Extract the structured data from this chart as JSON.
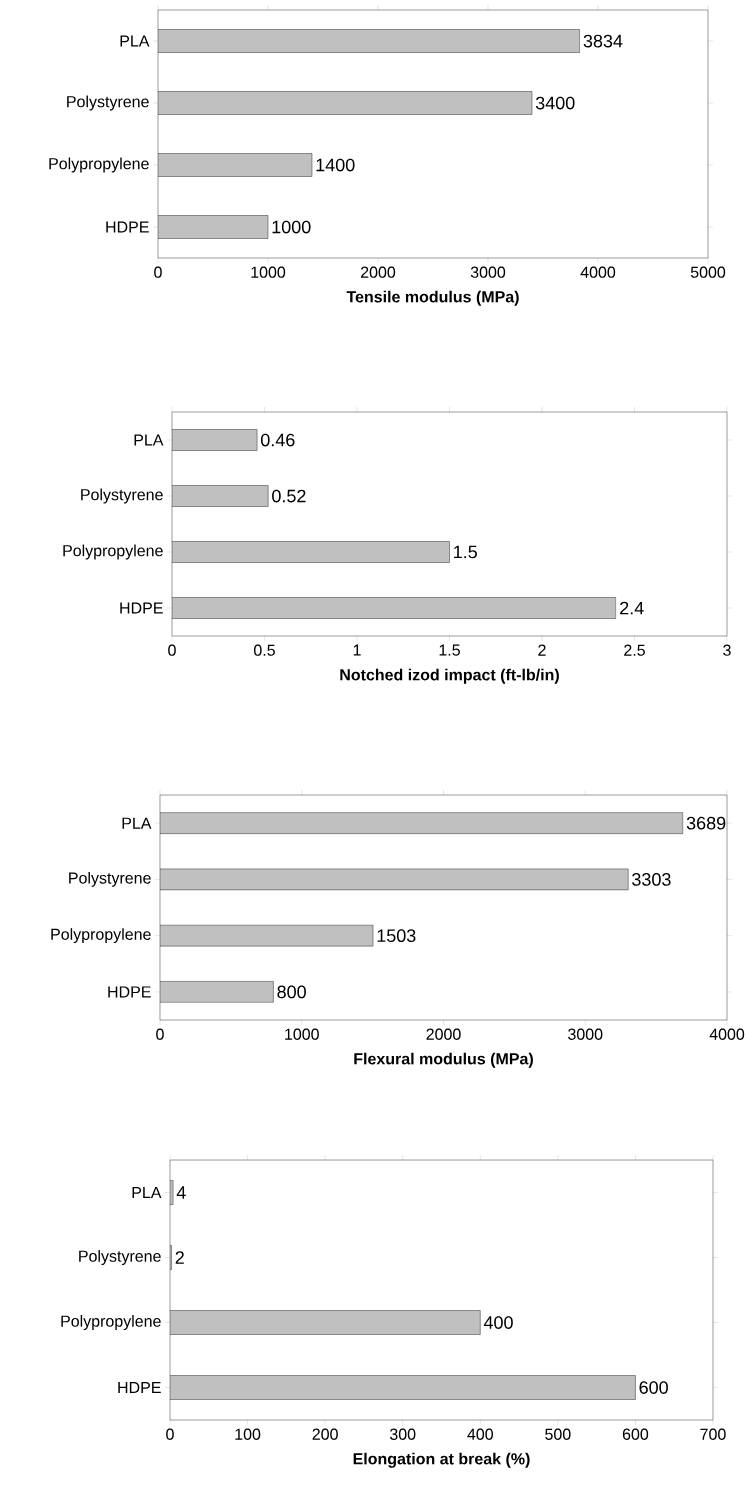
{
  "chart_data": [
    {
      "type": "bar",
      "orientation": "horizontal",
      "categories": [
        "PLA",
        "Polystyrene",
        "Polypropylene",
        "HDPE"
      ],
      "values": [
        3834,
        3400,
        1400,
        1000
      ],
      "color": "#c0c0c0",
      "xlim": [
        0,
        5000
      ],
      "xticks": [
        0,
        1000,
        2000,
        3000,
        4000,
        5000
      ],
      "xlabel": "Tensile modulus (MPa)",
      "data_labels": true
    },
    {
      "type": "bar",
      "orientation": "horizontal",
      "categories": [
        "PLA",
        "Polystyrene",
        "Polypropylene",
        "HDPE"
      ],
      "values": [
        0.46,
        0.52,
        1.5,
        2.4
      ],
      "color": "#c0c0c0",
      "xlim": [
        0,
        3
      ],
      "xticks": [
        0,
        0.5,
        1,
        1.5,
        2,
        2.5,
        3
      ],
      "xlabel": "Notched izod impact (ft-lb/in)",
      "data_labels": true
    },
    {
      "type": "bar",
      "orientation": "horizontal",
      "categories": [
        "PLA",
        "Polystyrene",
        "Polypropylene",
        "HDPE"
      ],
      "values": [
        3689,
        3303,
        1503,
        800
      ],
      "color": "#c0c0c0",
      "xlim": [
        0,
        4000
      ],
      "xticks": [
        0,
        1000,
        2000,
        3000,
        4000
      ],
      "xlabel": "Flexural modulus (MPa)",
      "data_labels": true
    },
    {
      "type": "bar",
      "orientation": "horizontal",
      "categories": [
        "PLA",
        "Polystyrene",
        "Polypropylene",
        "HDPE"
      ],
      "values": [
        4,
        2,
        400,
        600
      ],
      "color": "#c0c0c0",
      "xlim": [
        0,
        700
      ],
      "xticks": [
        0,
        100,
        200,
        300,
        400,
        500,
        600,
        700
      ],
      "xlabel": "Elongation at break (%)",
      "data_labels": true
    }
  ]
}
